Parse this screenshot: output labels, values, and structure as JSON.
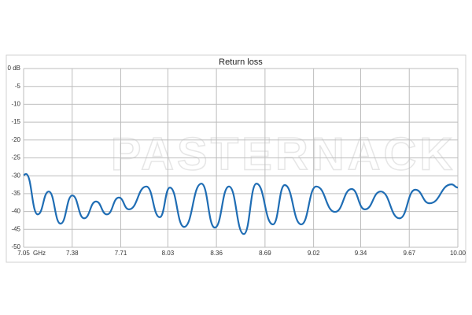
{
  "chart_data": {
    "type": "line",
    "title": "Return loss",
    "watermark": "PASTERNACK",
    "xlabel": "GHz",
    "x": [
      7.05,
      7.066,
      7.146,
      7.221,
      7.301,
      7.381,
      7.461,
      7.542,
      7.616,
      7.697,
      7.766,
      7.884,
      7.975,
      8.044,
      8.14,
      8.258,
      8.349,
      8.445,
      8.546,
      8.632,
      8.744,
      8.824,
      8.936,
      9.038,
      9.166,
      9.278,
      9.369,
      9.476,
      9.604,
      9.711,
      9.808,
      9.957,
      10.0
    ],
    "series": [
      {
        "color": "#1f6db4",
        "values": [
          -29.8,
          -29.5,
          -40.8,
          -34.4,
          -43.4,
          -35.5,
          -41.9,
          -37.2,
          -40.8,
          -36.1,
          -39.4,
          -33.0,
          -41.6,
          -33.3,
          -44.3,
          -32.2,
          -44.5,
          -33.0,
          -46.3,
          -32.2,
          -43.6,
          -32.6,
          -43.6,
          -33.0,
          -40.1,
          -33.7,
          -39.4,
          -34.4,
          -41.9,
          -33.9,
          -37.7,
          -32.4,
          -33.3
        ]
      }
    ],
    "xlim": [
      7.05,
      10.0
    ],
    "ylim": [
      -50,
      0
    ],
    "xticks": [
      7.05,
      7.38,
      7.71,
      8.03,
      8.36,
      8.69,
      9.02,
      9.34,
      9.67,
      {
        "value": 10.0,
        "label": "10.00"
      }
    ],
    "yticks": [
      {
        "value": 0,
        "label": "0 dB"
      },
      -5,
      -10,
      -15,
      -20,
      -25,
      -30,
      -35,
      -40,
      -45,
      -50
    ],
    "grid": true
  }
}
